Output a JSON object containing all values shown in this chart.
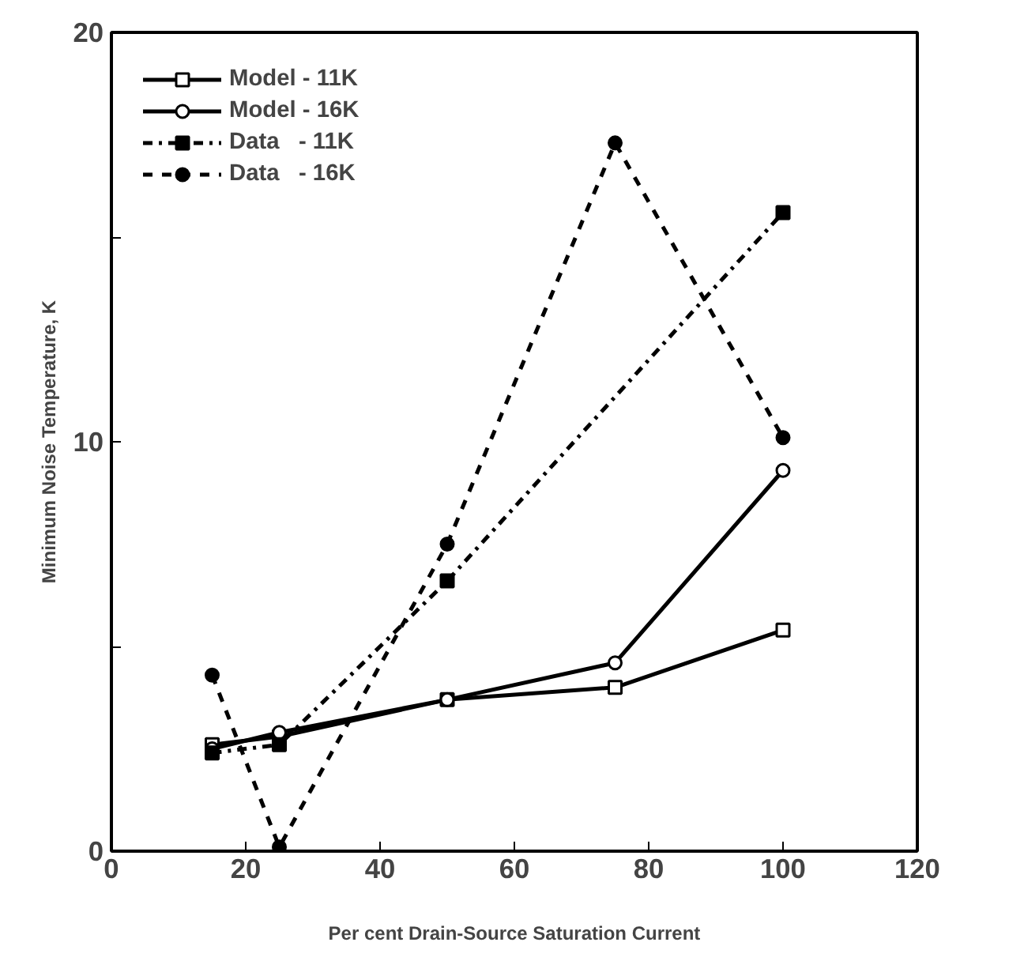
{
  "chart_data": {
    "type": "line",
    "xlabel": "Per cent Drain-Source Saturation Current",
    "ylabel": "Minimum Noise Temperature, K",
    "x": [
      15,
      25,
      50,
      75,
      100
    ],
    "xlim": [
      0,
      120
    ],
    "xticks": [
      0,
      20,
      40,
      60,
      80,
      100,
      120
    ],
    "ylim": [
      0,
      20
    ],
    "yticks": [
      0,
      {
        "value": 5,
        "label": null
      },
      10,
      {
        "value": 15,
        "label": null
      },
      20
    ],
    "grid": false,
    "legend": "top left",
    "series": [
      {
        "name": "Model - 11K",
        "color": "#000000",
        "marker": "square",
        "line_style": "solid",
        "values": [
          2.6,
          2.8,
          3.7,
          4.0,
          5.4
        ]
      },
      {
        "name": "Model - 16K",
        "color": "#000000",
        "marker": "circle",
        "line_style": "solid",
        "values": [
          2.5,
          2.9,
          3.7,
          4.6,
          9.3
        ]
      },
      {
        "name": "Data   - 11K",
        "color": "#000000",
        "marker": "square",
        "line_style": "dashdot",
        "x": [
          15,
          25,
          50,
          100
        ],
        "values": [
          2.4,
          2.6,
          6.6,
          15.6
        ]
      },
      {
        "name": "Data   - 16K",
        "color": "#000000",
        "marker": "circle",
        "line_style": "dashed",
        "values": [
          4.3,
          0.1,
          7.5,
          17.3,
          10.1
        ]
      }
    ]
  }
}
